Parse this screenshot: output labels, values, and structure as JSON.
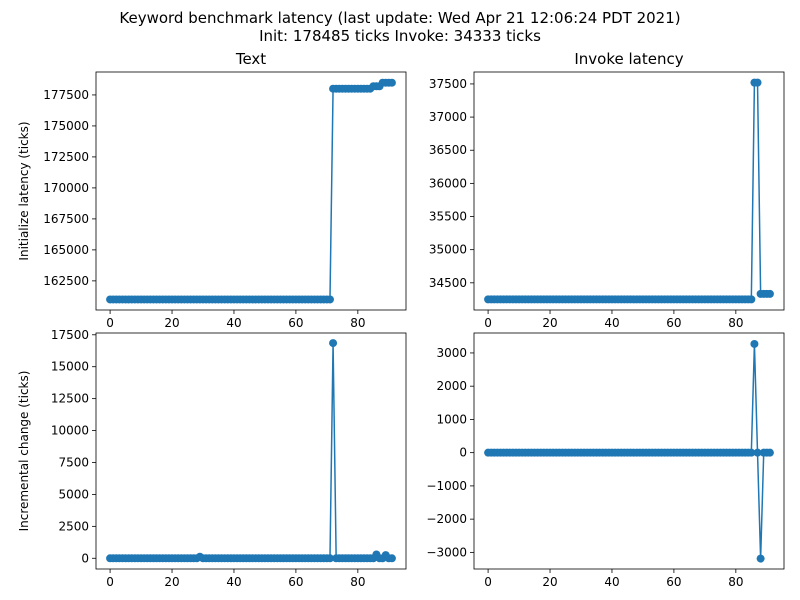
{
  "figure": {
    "title_line1": "Keyword benchmark latency (last update: Wed Apr 21 12:06:24 PDT 2021)",
    "title_line2": "Init: 178485 ticks Invoke: 34333 ticks",
    "series_color": "#1f77b4"
  },
  "chart_data": [
    {
      "id": "init",
      "type": "line",
      "title": "Text",
      "xlabel": "",
      "ylabel": "Initialize latency (ticks)",
      "xlim": [
        -4.55,
        95.55
      ],
      "ylim": [
        160150,
        179350
      ],
      "xticks": [
        0,
        20,
        40,
        60,
        80
      ],
      "yticks": [
        162500,
        165000,
        167500,
        170000,
        172500,
        175000,
        177500
      ],
      "x": [
        0,
        91
      ],
      "segments": [
        {
          "from": 0,
          "to": 71,
          "value": 161000
        },
        {
          "from": 72,
          "to": 84,
          "value": 178000
        },
        {
          "from": 85,
          "to": 87,
          "value": 178200
        },
        {
          "from": 88,
          "to": 91,
          "value": 178485
        }
      ],
      "marker": "o"
    },
    {
      "id": "invoke",
      "type": "line",
      "title": "Invoke latency",
      "xlabel": "",
      "ylabel": "",
      "xlim": [
        -4.55,
        95.55
      ],
      "ylim": [
        34090,
        37680
      ],
      "xticks": [
        0,
        20,
        40,
        60,
        80
      ],
      "yticks": [
        34500,
        35000,
        35500,
        36000,
        36500,
        37000,
        37500
      ],
      "x": [
        0,
        91
      ],
      "segments": [
        {
          "from": 0,
          "to": 85,
          "value": 34250
        },
        {
          "from": 86,
          "to": 87,
          "value": 37520
        },
        {
          "from": 88,
          "to": 91,
          "value": 34333
        }
      ],
      "marker": "o"
    },
    {
      "id": "init_delta",
      "type": "line",
      "title": "",
      "xlabel": "",
      "ylabel": "Incremental change (ticks)",
      "xlim": [
        -4.55,
        95.55
      ],
      "ylim": [
        -840,
        17640
      ],
      "xticks": [
        0,
        20,
        40,
        60,
        80
      ],
      "yticks": [
        0,
        2500,
        5000,
        7500,
        10000,
        12500,
        15000,
        17500
      ],
      "x": [
        0,
        91
      ],
      "baseline": 0,
      "spikes": [
        {
          "x": 29,
          "value": 120
        },
        {
          "x": 72,
          "value": 16850
        },
        {
          "x": 86,
          "value": 300
        },
        {
          "x": 89,
          "value": 250
        }
      ],
      "marker": "o"
    },
    {
      "id": "invoke_delta",
      "type": "line",
      "title": "",
      "xlabel": "",
      "ylabel": "",
      "xlim": [
        -4.55,
        95.55
      ],
      "ylim": [
        -3500,
        3600
      ],
      "xticks": [
        0,
        20,
        40,
        60,
        80
      ],
      "yticks": [
        -3000,
        -2000,
        -1000,
        0,
        1000,
        2000,
        3000
      ],
      "x": [
        0,
        91
      ],
      "baseline": 0,
      "spikes": [
        {
          "x": 86,
          "value": 3270
        },
        {
          "x": 88,
          "value": -3187
        }
      ],
      "marker": "o"
    }
  ]
}
